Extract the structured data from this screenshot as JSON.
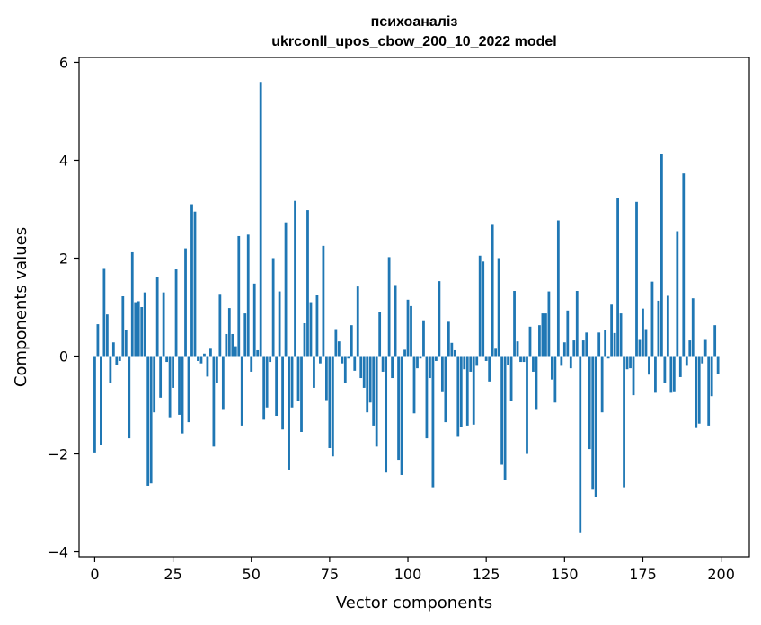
{
  "chart_data": {
    "type": "bar",
    "title_line1": "психоаналіз",
    "title_line2": "ukrconll_upos_cbow_200_10_2022 model",
    "xlabel": "Vector components",
    "ylabel": "Components values",
    "xlim": [
      -5,
      209
    ],
    "ylim": [
      -4.1,
      6.1
    ],
    "xticks": [
      0,
      25,
      50,
      75,
      100,
      125,
      150,
      175,
      200
    ],
    "xtick_labels": [
      "0",
      "25",
      "50",
      "75",
      "100",
      "125",
      "150",
      "175",
      "200"
    ],
    "yticks": [
      -4,
      -2,
      0,
      2,
      4,
      6
    ],
    "ytick_labels": [
      "−4",
      "−2",
      "0",
      "2",
      "4",
      "6"
    ],
    "bar_color": "#1f77b4",
    "grid": false,
    "values": [
      -1.97,
      0.65,
      -1.82,
      1.78,
      0.85,
      -0.55,
      0.28,
      -0.18,
      -0.1,
      1.22,
      0.53,
      -1.68,
      2.12,
      1.1,
      1.12,
      1.0,
      1.3,
      -2.65,
      -2.6,
      -1.15,
      1.62,
      -0.85,
      1.3,
      -0.12,
      -1.25,
      -0.65,
      1.77,
      -1.2,
      -1.58,
      2.2,
      -1.35,
      3.1,
      2.95,
      -0.1,
      -0.15,
      0.05,
      -0.42,
      0.15,
      -1.85,
      -0.55,
      1.27,
      -1.1,
      0.45,
      0.98,
      0.45,
      0.2,
      2.45,
      -1.42,
      0.87,
      2.48,
      -0.32,
      1.48,
      0.12,
      5.6,
      -1.3,
      -1.05,
      -0.12,
      2.0,
      -1.22,
      1.32,
      -1.5,
      2.73,
      -2.32,
      -1.05,
      3.17,
      -0.92,
      -1.55,
      0.67,
      2.98,
      1.1,
      -0.65,
      1.25,
      -0.15,
      2.25,
      -0.9,
      -1.88,
      -2.05,
      0.55,
      0.3,
      -0.15,
      -0.55,
      -0.05,
      0.63,
      -0.3,
      1.42,
      -0.45,
      -0.65,
      -1.15,
      -0.95,
      -1.42,
      -1.85,
      0.9,
      -0.32,
      -2.38,
      2.02,
      -0.45,
      1.45,
      -2.12,
      -2.43,
      0.13,
      1.15,
      1.02,
      -1.17,
      -0.25,
      -0.05,
      0.73,
      -1.68,
      -0.45,
      -2.68,
      -0.1,
      1.53,
      -0.72,
      -1.35,
      0.7,
      0.27,
      0.12,
      -1.65,
      -1.45,
      -0.27,
      -1.42,
      -0.32,
      -1.4,
      -0.2,
      2.05,
      1.93,
      -0.1,
      -0.52,
      2.68,
      0.15,
      2.0,
      -2.22,
      -2.53,
      -0.18,
      -0.92,
      1.33,
      0.3,
      -0.12,
      -0.12,
      -2.0,
      0.6,
      -0.32,
      -1.1,
      0.63,
      0.87,
      0.87,
      1.32,
      -0.48,
      -0.95,
      2.77,
      -0.2,
      0.28,
      0.93,
      -0.25,
      0.32,
      1.33,
      -3.6,
      0.32,
      0.48,
      -1.9,
      -2.73,
      -2.88,
      0.48,
      -1.15,
      0.53,
      -0.05,
      1.05,
      0.47,
      3.22,
      0.87,
      -2.68,
      -0.27,
      -0.25,
      -0.8,
      3.15,
      0.33,
      0.97,
      0.55,
      -0.38,
      1.52,
      -0.75,
      1.13,
      4.12,
      -0.55,
      1.23,
      -0.75,
      -0.72,
      2.55,
      -0.43,
      3.73,
      -0.2,
      0.32,
      1.18,
      -1.47,
      -1.38,
      -0.15,
      0.33,
      -1.42,
      -0.82,
      0.63,
      -0.37
    ]
  }
}
